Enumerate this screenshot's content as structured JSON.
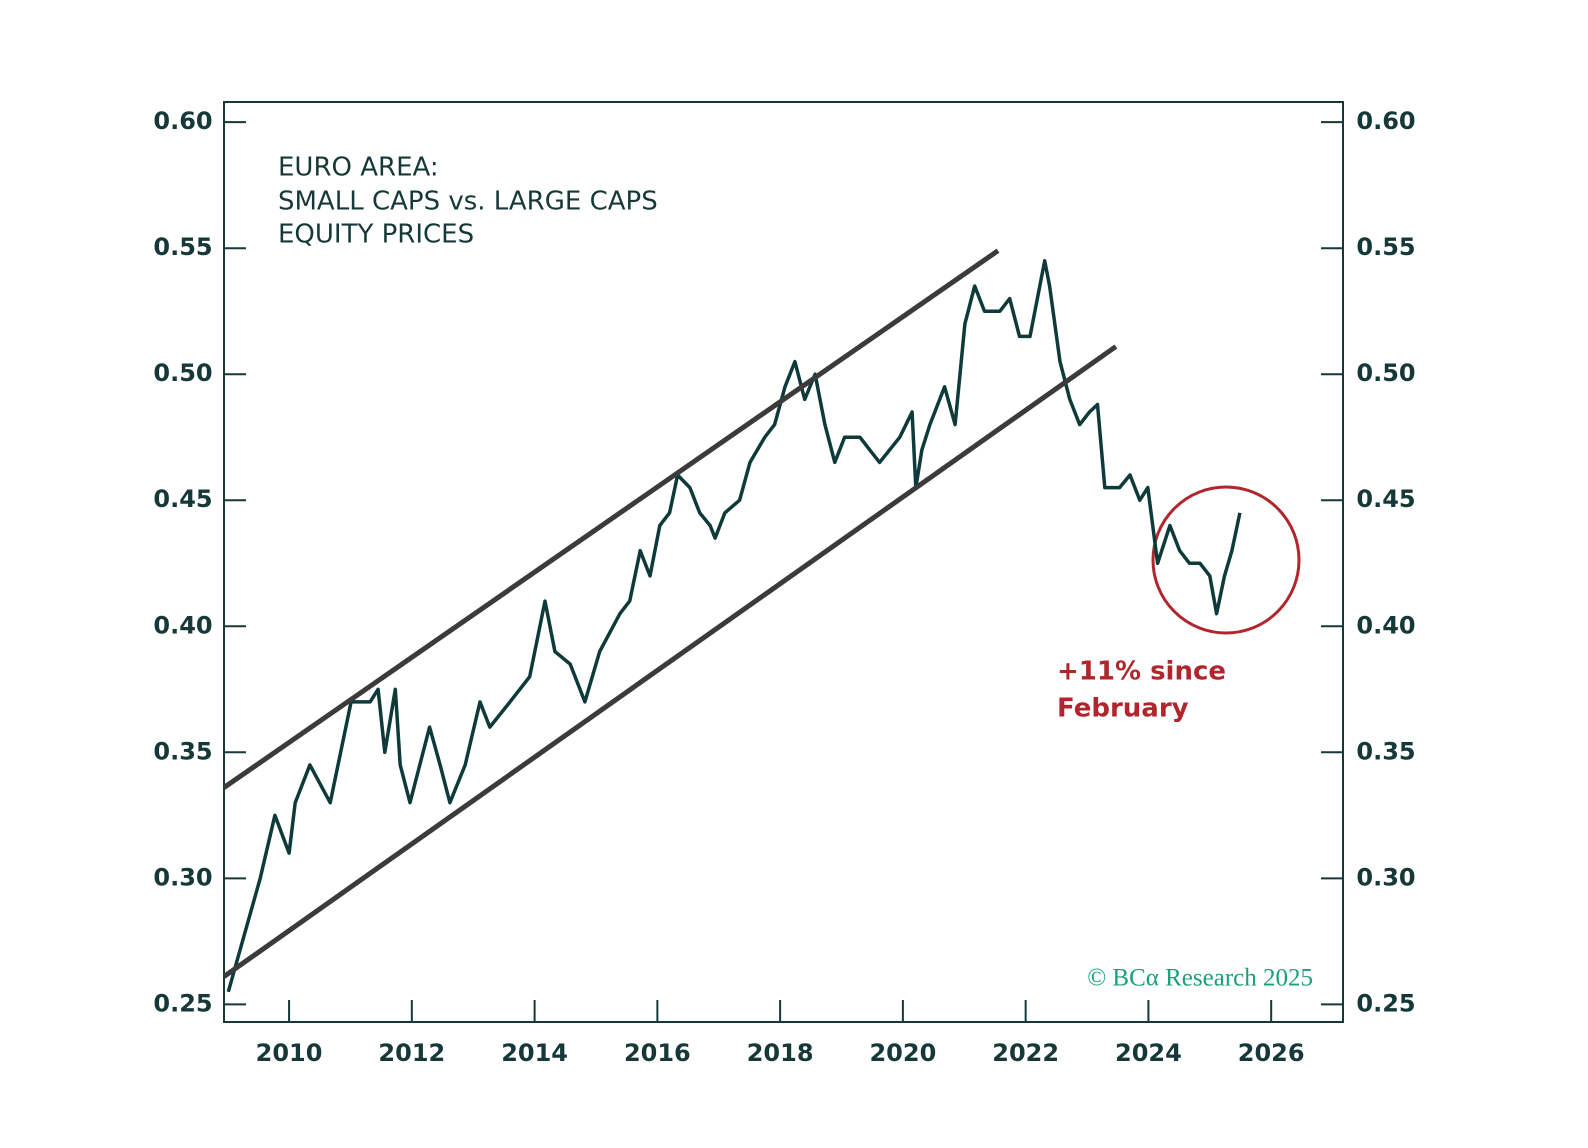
{
  "chart_data": {
    "type": "line",
    "title": [
      "EURO AREA:",
      "SMALL CAPS vs. LARGE CAPS",
      "EQUITY PRICES"
    ],
    "annotation": [
      "+11% since",
      "February"
    ],
    "source": "© BCα Research 2025",
    "xlim": [
      2008.94,
      2027.17
    ],
    "xticks": [
      2010,
      2012,
      2014,
      2016,
      2018,
      2020,
      2022,
      2024,
      2026
    ],
    "ylim": [
      0.243,
      0.608
    ],
    "yticks": [
      0.25,
      {
        "value": 0.3,
        "label": "0.30"
      },
      0.35,
      {
        "value": 0.4,
        "label": "0.40"
      },
      0.45,
      {
        "value": 0.5,
        "label": "0.50"
      },
      0.55,
      {
        "value": 0.6,
        "label": "0.60"
      }
    ],
    "series": [
      {
        "color": "#0f3a3a",
        "width": 3.5,
        "x": [
          2009.01,
          2009.53,
          2009.77,
          2010.0,
          2010.1,
          2010.34,
          2010.67,
          2011.01,
          2011.32,
          2011.45,
          2011.56,
          2011.73,
          2011.81,
          2011.97,
          2012.29,
          2012.46,
          2012.62,
          2012.87,
          2013.11,
          2013.27,
          2013.6,
          2013.92,
          2014.17,
          2014.33,
          2014.58,
          2014.82,
          2015.06,
          2015.39,
          2015.55,
          2015.72,
          2015.88,
          2016.04,
          2016.2,
          2016.33,
          2016.53,
          2016.69,
          2016.86,
          2016.94,
          2017.1,
          2017.34,
          2017.51,
          2017.75,
          2017.91,
          2018.08,
          2018.24,
          2018.4,
          2018.57,
          2018.73,
          2018.89,
          2019.05,
          2019.3,
          2019.46,
          2019.62,
          2019.95,
          2020.15,
          2020.21,
          2020.31,
          2020.44,
          2020.68,
          2020.85,
          2021.01,
          2021.17,
          2021.33,
          2021.58,
          2021.74,
          2021.9,
          2022.07,
          2022.23,
          2022.31,
          2022.39,
          2022.56,
          2022.72,
          2022.88,
          2023.04,
          2023.17,
          2023.29,
          2023.53,
          2023.7,
          2023.86,
          2023.99,
          2024.15,
          2024.35,
          2024.51,
          2024.67,
          2024.84,
          2025.0,
          2025.11,
          2025.24,
          2025.36,
          2025.49
        ],
        "values": [
          0.255,
          0.3,
          0.325,
          0.31,
          0.33,
          0.345,
          0.33,
          0.37,
          0.37,
          0.375,
          0.35,
          0.375,
          0.345,
          0.33,
          0.36,
          0.345,
          0.33,
          0.345,
          0.37,
          0.36,
          0.37,
          0.38,
          0.41,
          0.39,
          0.385,
          0.37,
          0.39,
          0.405,
          0.41,
          0.43,
          0.42,
          0.44,
          0.445,
          0.46,
          0.455,
          0.445,
          0.44,
          0.435,
          0.445,
          0.45,
          0.465,
          0.475,
          0.48,
          0.495,
          0.505,
          0.49,
          0.5,
          0.48,
          0.465,
          0.475,
          0.475,
          0.47,
          0.465,
          0.475,
          0.485,
          0.455,
          0.47,
          0.48,
          0.495,
          0.48,
          0.52,
          0.535,
          0.525,
          0.525,
          0.53,
          0.515,
          0.515,
          0.535,
          0.545,
          0.535,
          0.505,
          0.49,
          0.48,
          0.485,
          0.488,
          0.455,
          0.455,
          0.46,
          0.45,
          0.455,
          0.425,
          0.44,
          0.43,
          0.425,
          0.425,
          0.42,
          0.405,
          0.42,
          0.43,
          0.445
        ]
      },
      {
        "color": "#3b3b3b",
        "width": 5,
        "x": [
          2008.94,
          2021.55
        ],
        "values": [
          0.336,
          0.549
        ]
      },
      {
        "color": "#3b3b3b",
        "width": 5,
        "x": [
          2008.94,
          2023.47
        ],
        "values": [
          0.261,
          0.511
        ]
      }
    ]
  }
}
